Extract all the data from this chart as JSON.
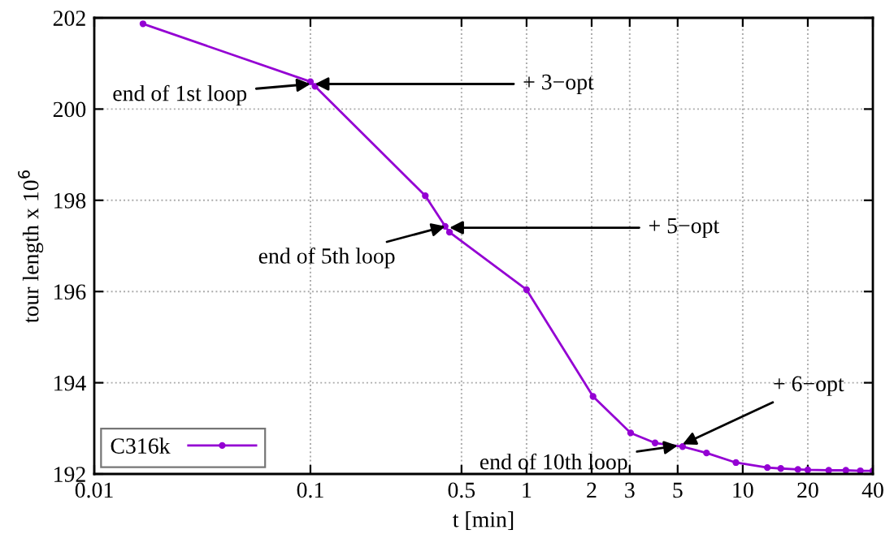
{
  "chart_data": {
    "type": "line",
    "xlabel": "t [min]",
    "ylabel": "tour length x 10$^{6}$",
    "log": "x",
    "xlim": [
      0.01,
      40
    ],
    "ylim": [
      192,
      202
    ],
    "xticks": [
      0.01,
      0.1,
      0.5,
      1,
      2,
      3,
      5,
      10,
      20,
      40
    ],
    "yticks": [
      192,
      194,
      196,
      198,
      200,
      202
    ],
    "grid": true,
    "legend": "bottom left",
    "marker": "circle",
    "line_style": "solid",
    "x": [
      0.0168,
      0.1,
      0.105,
      0.34,
      0.42,
      0.44,
      1,
      2.03,
      3.03,
      3.93,
      5.27,
      6.8,
      9.3,
      13,
      15,
      18,
      20,
      25,
      30,
      35,
      40
    ],
    "series": [
      {
        "name": "C316k",
        "color": "#9400d3",
        "values": [
          201.87,
          200.6,
          200.5,
          198.1,
          197.43,
          197.3,
          196.04,
          193.7,
          192.9,
          192.68,
          192.6,
          192.46,
          192.25,
          192.14,
          192.12,
          192.1,
          192.09,
          192.08,
          192.08,
          192.07,
          192.07
        ]
      }
    ],
    "annotations": [
      {
        "text": "end of 1st loop",
        "x": 0.1,
        "y": 200.55
      },
      {
        "text": "+ 3−opt",
        "x": 0.105,
        "y": 200.55
      },
      {
        "text": "end of 5th loop",
        "x": 0.42,
        "y": 197.43
      },
      {
        "text": "+ 5−opt",
        "x": 0.44,
        "y": 197.4
      },
      {
        "text": "end of 10th loop",
        "x": 5,
        "y": 192.62
      },
      {
        "text": "+ 6−opt",
        "x": 5.27,
        "y": 192.65
      }
    ]
  }
}
